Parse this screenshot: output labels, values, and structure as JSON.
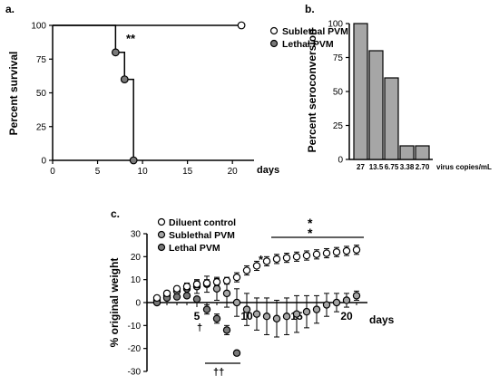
{
  "figure": {
    "panel_labels": [
      "a.",
      "b.",
      "c."
    ],
    "colors": {
      "open_marker": "#ffffff",
      "dark_marker": "#7a7a7a",
      "light_marker": "#a6a6a6",
      "bar_fill": "#a6a6a6",
      "axis": "#000000"
    }
  },
  "chart_data": [
    {
      "panel": "a.",
      "type": "line",
      "subtype": "kaplan-meier",
      "ylabel": "Percent survival",
      "xlabel": "days",
      "xlim": [
        0,
        22
      ],
      "ylim": [
        0,
        100
      ],
      "x_ticks": [
        0,
        5,
        10,
        15,
        20
      ],
      "y_ticks": [
        0,
        25,
        50,
        75,
        100
      ],
      "annotation": "**",
      "legend_position": "top-right",
      "series": [
        {
          "name": "Sublethal PVM",
          "marker": "open",
          "step_points": [
            [
              0,
              100
            ],
            [
              21,
              100
            ]
          ],
          "markers": [
            [
              21,
              100
            ]
          ]
        },
        {
          "name": "Lethal PVM",
          "marker": "dark",
          "step_points": [
            [
              0,
              100
            ],
            [
              7,
              100
            ],
            [
              7,
              80
            ],
            [
              8,
              80
            ],
            [
              8,
              60
            ],
            [
              9,
              60
            ],
            [
              9,
              0
            ]
          ],
          "markers": [
            [
              7,
              80
            ],
            [
              8,
              60
            ],
            [
              9,
              0
            ]
          ]
        }
      ]
    },
    {
      "panel": "b.",
      "type": "bar",
      "ylabel": "Percent seroconversion",
      "xlabel": "virus copies/mL",
      "categories": [
        "27",
        "13.5",
        "6.75",
        "3.38",
        "2.70"
      ],
      "values": [
        100,
        80,
        60,
        10,
        10
      ],
      "ylim": [
        0,
        100
      ],
      "y_ticks": [
        0,
        25,
        50,
        75,
        100
      ]
    },
    {
      "panel": "c.",
      "type": "scatter",
      "ylabel": "% original weight",
      "xlabel": "days",
      "xlim": [
        0,
        22
      ],
      "ylim": [
        -30,
        30
      ],
      "x_ticks": [
        5,
        10,
        15,
        20
      ],
      "x_tick_labels": [
        "5",
        "10",
        "15",
        "20"
      ],
      "y_ticks": [
        -30,
        -20,
        -10,
        0,
        10,
        20,
        30
      ],
      "legend_position": "top-left",
      "annotations": {
        "single": "*",
        "double": "*\n*",
        "dagger": "†",
        "double_dagger": "††"
      },
      "series": [
        {
          "name": "Diluent control",
          "marker": "open",
          "x": [
            1,
            2,
            3,
            4,
            5,
            6,
            7,
            8,
            9,
            10,
            11,
            12,
            13,
            14,
            15,
            16,
            17,
            18,
            19,
            20,
            21
          ],
          "y": [
            2,
            4,
            6,
            7,
            8,
            8.5,
            9,
            9.5,
            11,
            14,
            16,
            18,
            19,
            19.5,
            20,
            20.5,
            21,
            21.5,
            22,
            22.5,
            23
          ],
          "error": [
            1,
            1,
            1,
            1.5,
            1.5,
            1.5,
            1.5,
            1.5,
            2,
            2,
            2,
            2,
            2,
            2,
            2,
            2,
            2,
            2,
            2,
            2,
            2
          ]
        },
        {
          "name": "Sublethal PVM",
          "marker": "light",
          "x": [
            1,
            2,
            3,
            4,
            5,
            6,
            7,
            8,
            9,
            10,
            11,
            12,
            13,
            14,
            15,
            16,
            17,
            18,
            19,
            20,
            21
          ],
          "y": [
            1,
            3,
            5,
            6,
            7,
            8,
            6,
            4,
            0,
            -3,
            -5,
            -6,
            -7,
            -6,
            -5,
            -4,
            -3,
            -1,
            0,
            1,
            3
          ],
          "error": [
            1,
            1.5,
            2,
            2.5,
            3,
            3.5,
            5,
            6,
            6,
            7,
            7,
            8,
            8,
            8,
            8,
            7,
            6,
            5,
            4,
            3,
            2
          ]
        },
        {
          "name": "Lethal PVM",
          "marker": "dark",
          "x": [
            1,
            2,
            3,
            4,
            5,
            6,
            7,
            8,
            9
          ],
          "y": [
            0,
            2,
            2.5,
            3,
            1.5,
            -3,
            -7,
            -12,
            -22
          ],
          "error": [
            0,
            0,
            0,
            0,
            0,
            2,
            2,
            2,
            0
          ]
        }
      ]
    }
  ]
}
